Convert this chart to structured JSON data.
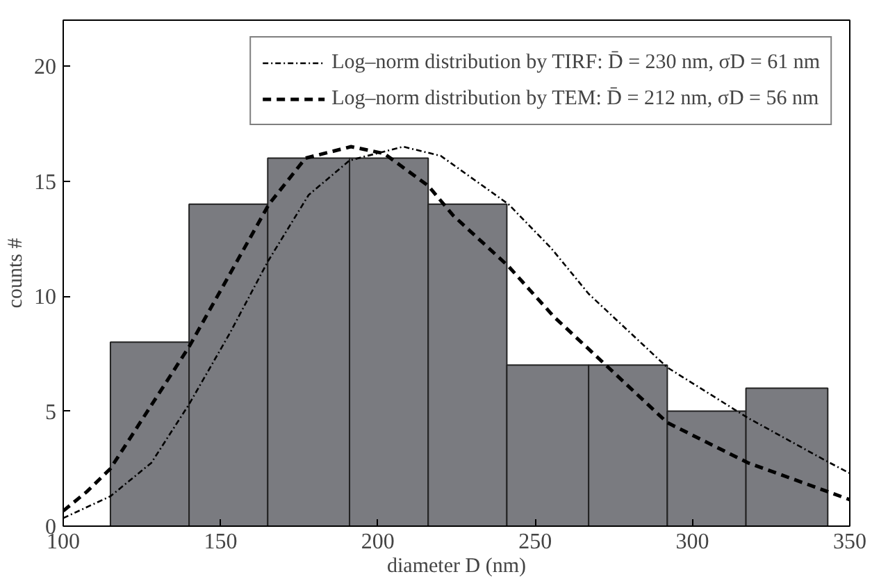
{
  "chart_data": {
    "type": "histogram",
    "xlabel": "diameter D (nm)",
    "ylabel": "counts #",
    "bins": [
      115,
      140,
      165,
      191,
      216,
      241,
      267,
      292,
      317,
      343
    ],
    "values": [
      8,
      14,
      16,
      16,
      14,
      7,
      7,
      5,
      6
    ],
    "color": "#7a7b80",
    "series": [
      {
        "type": "line",
        "name": "Log–norm distribution by TIRF: D̄ = 230 nm, σD = 61 nm",
        "color": "#000000",
        "line_style": "dotted",
        "x": [
          100,
          115,
          128,
          140,
          153,
          165,
          178,
          191,
          208,
          220,
          241.5,
          255,
          267,
          292,
          317.7,
          343,
          350
        ],
        "values": [
          0.35,
          1.3,
          2.75,
          5.3,
          8.4,
          11.5,
          14.4,
          15.9,
          16.5,
          16.1,
          14.0,
          12.1,
          10.1,
          6.9,
          4.7,
          2.8,
          2.3
        ]
      },
      {
        "type": "line",
        "name": "Log–norm distribution by TEM: D̄ = 212 nm, σD = 56 nm",
        "color": "#000000",
        "line_style": "dashed",
        "x": [
          100,
          107.5,
          115,
          140,
          165.4,
          177,
          191.5,
          202,
          216,
          224,
          241.5,
          256,
          267,
          292,
          317.7,
          343,
          350
        ],
        "values": [
          0.66,
          1.5,
          2.5,
          7.8,
          14.0,
          16.0,
          16.5,
          16.2,
          14.8,
          13.5,
          11.3,
          9.1,
          7.7,
          4.5,
          2.75,
          1.5,
          1.15
        ]
      }
    ],
    "xlim": [
      100,
      350
    ],
    "ylim": [
      0,
      22
    ],
    "xticks": [
      100,
      150,
      200,
      250,
      300,
      350
    ],
    "yticks": [
      0,
      5,
      10,
      15,
      20
    ],
    "grid": false,
    "legend": "top right"
  }
}
